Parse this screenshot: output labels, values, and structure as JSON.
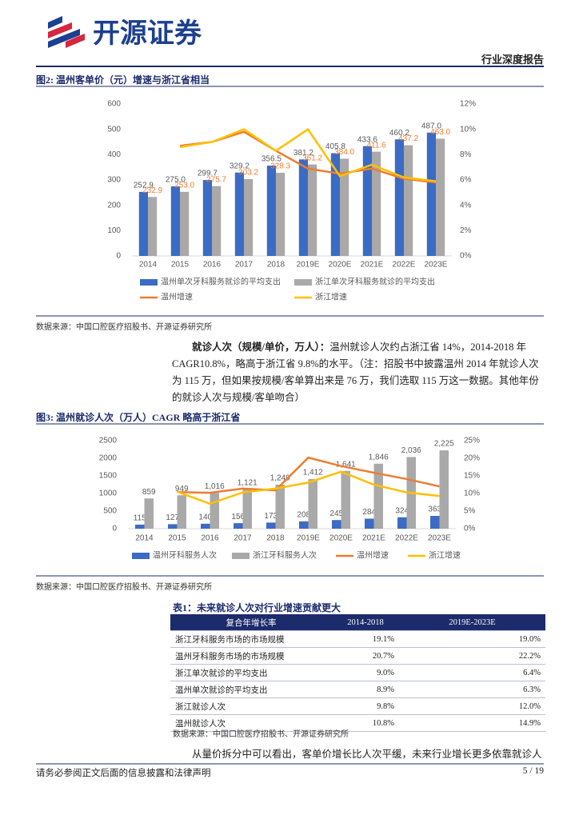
{
  "header": {
    "logo": "开源证券",
    "report_type": "行业深度报告"
  },
  "chart_data": [
    {
      "type": "bar_line",
      "title": "图2: 温州客单价（元）增速与浙江省相当",
      "categories": [
        "2014",
        "2015",
        "2016",
        "2017",
        "2018",
        "2019E",
        "2020E",
        "2021E",
        "2022E",
        "2023E"
      ],
      "series": [
        {
          "name": "温州单次牙科服务就诊的平均支出",
          "color": "#3b6bc4",
          "kind": "bar",
          "values": [
            252.9,
            275.0,
            299.7,
            329.2,
            356.5,
            381.2,
            405.8,
            433.6,
            460.2,
            487.0
          ],
          "value_labels": [
            "252.9",
            "275.0",
            "299.7",
            "329.2",
            "356.5",
            "381.2",
            "405.8",
            "433.6",
            "460.2",
            "487.0"
          ]
        },
        {
          "name": "浙江单次牙科服务就诊的平均支出",
          "color": "#a9a9a9",
          "kind": "bar",
          "values": [
            232.9,
            253.0,
            275.7,
            303.2,
            328.3,
            361.2,
            384.0,
            411.6,
            437.2,
            463.0
          ],
          "value_labels": [
            "232.9",
            "253.0",
            "275.7",
            "303.2",
            "328.3",
            "361.2",
            "384.0",
            "411.6",
            "437.2",
            "463.0"
          ]
        },
        {
          "name": "温州增速",
          "color": "#ed7d31",
          "kind": "line",
          "axis": "y2",
          "values": [
            null,
            8.7,
            9.0,
            9.8,
            8.3,
            6.9,
            6.5,
            6.9,
            6.1,
            5.8
          ]
        },
        {
          "name": "浙江增速",
          "color": "#ffc000",
          "kind": "line",
          "axis": "y2",
          "values": [
            null,
            8.6,
            9.0,
            10.0,
            8.3,
            10.0,
            6.3,
            7.2,
            6.2,
            5.9
          ]
        }
      ],
      "ylim": [
        0,
        600
      ],
      "yticks": [
        0,
        100,
        200,
        300,
        400,
        500,
        600
      ],
      "y2lim": [
        0,
        12
      ],
      "y2ticks": [
        {
          "value": 0,
          "label": "0%"
        },
        {
          "value": 2,
          "label": "2%"
        },
        {
          "value": 4,
          "label": "4%"
        },
        {
          "value": 6,
          "label": "6%"
        },
        {
          "value": 8,
          "label": "8%"
        },
        {
          "value": 10,
          "label": "10%"
        },
        {
          "value": 12,
          "label": "12%"
        }
      ],
      "legend": "bottom",
      "grid": false
    },
    {
      "type": "bar_line",
      "title": "图3: 温州就诊人次（万人）CAGR 略高于浙江省",
      "categories": [
        "2014",
        "2015",
        "2016",
        "2017",
        "2018",
        "2019E",
        "2020E",
        "2021E",
        "2022E",
        "2023E"
      ],
      "series": [
        {
          "name": "温州牙科服务人次",
          "color": "#3b6bc4",
          "kind": "bar",
          "values": [
            115,
            127,
            140,
            156,
            173,
            208,
            245,
            284,
            324,
            363
          ]
        },
        {
          "name": "浙江牙科服务人次",
          "color": "#a9a9a9",
          "kind": "bar",
          "values": [
            859,
            949,
            1016,
            1121,
            1249,
            1412,
            1641,
            1846,
            2036,
            2225
          ],
          "value_labels": [
            "859",
            "949",
            "1,016",
            "1,121",
            "1,249",
            "1,412",
            "1,641",
            "1,846",
            "2,036",
            "2,225"
          ]
        },
        {
          "name": "温州增速",
          "color": "#ed7d31",
          "kind": "line",
          "axis": "y2",
          "values": [
            null,
            10.4,
            10.2,
            11.4,
            10.9,
            20.2,
            17.8,
            15.9,
            14.1,
            12.0
          ]
        },
        {
          "name": "浙江增速",
          "color": "#ffc000",
          "kind": "line",
          "axis": "y2",
          "values": [
            null,
            10.5,
            7.1,
            10.3,
            11.4,
            13.1,
            16.2,
            12.5,
            10.3,
            9.3
          ]
        }
      ],
      "ylim": [
        0,
        2500
      ],
      "yticks": [
        0,
        500,
        1000,
        1500,
        2000,
        2500
      ],
      "y2lim": [
        0,
        25
      ],
      "y2ticks": [
        {
          "value": 0,
          "label": "0%"
        },
        {
          "value": 5,
          "label": "5%"
        },
        {
          "value": 10,
          "label": "10%"
        },
        {
          "value": 15,
          "label": "15%"
        },
        {
          "value": 20,
          "label": "20%"
        },
        {
          "value": 25,
          "label": "25%"
        }
      ],
      "legend": "bottom",
      "grid": false
    }
  ],
  "sources": [
    "数据来源：中国口腔医疗招股书、开源证券研究所",
    "数据来源：中国口腔医疗招股书、开源证券研究所",
    "数据来源：中国口腔医疗招股书、开源证券研究所"
  ],
  "paragraphs": [
    {
      "lead": "就诊人次（规模/单价，万人）：",
      "text": "温州就诊人次约占浙江省 14%，2014-2018 年 CAGR10.8%，略高于浙江省 9.8%的水平。（注：招股书中披露温州 2014 年就诊人次为 115 万，但如果按规模/客单算出来是 76 万，我们选取 115 万这一数据。其他年份的就诊人次与规模/客单吻合）"
    },
    {
      "text": "从量价拆分中可以看出，客单价增长比人次平缓，未来行业增长更多依靠就诊人"
    }
  ],
  "table": {
    "title": "表1：未来就诊人次对行业增速贡献更大",
    "header": [
      "复合年增长率",
      "2014-2018",
      "2019E-2023E"
    ],
    "rows": [
      [
        "浙江牙科服务市场的市场规模",
        "19.1%",
        "19.0%"
      ],
      [
        "温州牙科服务市场的市场规模",
        "20.7%",
        "22.2%"
      ],
      [
        "浙江单次就诊的平均支出",
        "9.0%",
        "6.4%"
      ],
      [
        "温州单次就诊的平均支出",
        "8.9%",
        "6.3%"
      ],
      [
        "浙江就诊人次",
        "9.8%",
        "12.0%"
      ],
      [
        "温州就诊人次",
        "10.8%",
        "14.9%"
      ]
    ]
  },
  "footer": {
    "disclaimer": "请务必参阅正文后面的信息披露和法律声明",
    "page": "5 / 19"
  }
}
